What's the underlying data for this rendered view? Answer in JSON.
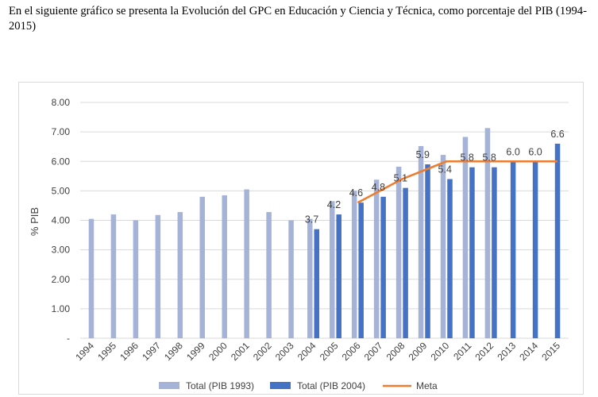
{
  "intro_text": "En el siguiente gráfico se presenta la Evolución del GPC en Educación y Ciencia y Técnica, como porcentaje del PIB (1994-2015)",
  "colors": {
    "series_1993": "#a5b3d9",
    "series_2004": "#4472c4",
    "meta": "#ed7d31",
    "grid": "#d9d9d9",
    "text": "#404040"
  },
  "chart_data": {
    "type": "bar",
    "title": "",
    "xlabel": "",
    "ylabel": "% PIB",
    "ylim": [
      0,
      8
    ],
    "yticks": [
      "-",
      "1.00",
      "2.00",
      "3.00",
      "4.00",
      "5.00",
      "6.00",
      "7.00",
      "8.00"
    ],
    "grid": true,
    "legend_position": "bottom",
    "categories": [
      "1994",
      "1995",
      "1996",
      "1997",
      "1998",
      "1999",
      "2000",
      "2001",
      "2002",
      "2003",
      "2004",
      "2005",
      "2006",
      "2007",
      "2008",
      "2009",
      "2010",
      "2011",
      "2012",
      "2013",
      "2014",
      "2015"
    ],
    "series": [
      {
        "name": "Total (PIB 1993)",
        "kind": "bar",
        "values": [
          4.05,
          4.2,
          4.0,
          4.18,
          4.28,
          4.8,
          4.85,
          5.05,
          4.28,
          4.0,
          4.05,
          4.65,
          5.0,
          5.38,
          5.82,
          6.52,
          6.22,
          6.83,
          7.13,
          null,
          null,
          null
        ]
      },
      {
        "name": "Total (PIB 2004)",
        "kind": "bar",
        "values": [
          null,
          null,
          null,
          null,
          null,
          null,
          null,
          null,
          null,
          null,
          3.7,
          4.2,
          4.6,
          4.8,
          5.1,
          5.9,
          5.4,
          5.8,
          5.8,
          6.0,
          6.0,
          6.6
        ],
        "labels": [
          "",
          "",
          "",
          "",
          "",
          "",
          "",
          "",
          "",
          "",
          "3.7",
          "4.2",
          "4.6",
          "4.8",
          "5.1",
          "5.9",
          "5.4",
          "5.8",
          "5.8",
          "6.0",
          "6.0",
          "6.6"
        ]
      },
      {
        "name": "Meta",
        "kind": "line",
        "values": [
          null,
          null,
          null,
          null,
          null,
          null,
          null,
          null,
          null,
          null,
          null,
          null,
          4.6,
          5.0,
          5.4,
          5.7,
          6.0,
          6.0,
          6.0,
          6.0,
          6.0,
          6.0
        ]
      }
    ]
  }
}
